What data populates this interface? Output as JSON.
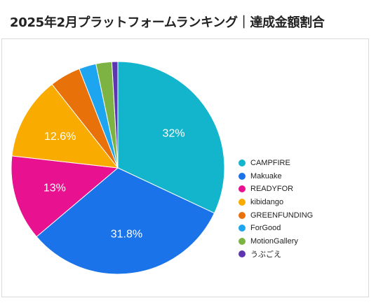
{
  "title": "2025年2月プラットフォームランキング｜達成金額割合",
  "chart_data": {
    "type": "pie",
    "title": "2025年2月プラットフォームランキング｜達成金額割合",
    "legend_position": "right",
    "slices": [
      {
        "name": "CAMPFIRE",
        "value": 32,
        "label": "32%",
        "color": "#12b5cb"
      },
      {
        "name": "Makuake",
        "value": 31.8,
        "label": "31.8%",
        "color": "#1a73e8"
      },
      {
        "name": "READYFOR",
        "value": 13,
        "label": "13%",
        "color": "#e8118f"
      },
      {
        "name": "kibidango",
        "value": 12.6,
        "label": "12.6%",
        "color": "#f9ab00"
      },
      {
        "name": "GREENFUNDING",
        "value": 4.7,
        "label": "",
        "color": "#e8710a"
      },
      {
        "name": "ForGood",
        "value": 2.6,
        "label": "",
        "color": "#1ea5f0"
      },
      {
        "name": "MotionGallery",
        "value": 2.4,
        "label": "",
        "color": "#7cb342"
      },
      {
        "name": "うぶごえ",
        "value": 0.9,
        "label": "",
        "color": "#5e35b1"
      }
    ]
  }
}
